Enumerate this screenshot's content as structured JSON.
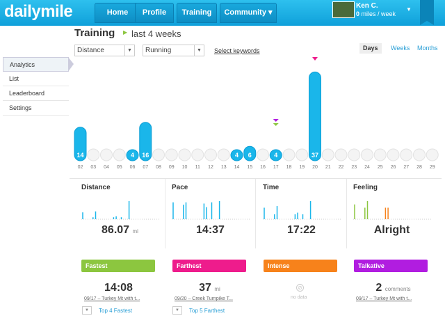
{
  "app": {
    "logo": "dailymile"
  },
  "nav": {
    "home": "Home",
    "profile": "Profile",
    "training": "Training",
    "community": "Community ▾"
  },
  "user": {
    "name": "Ken C.",
    "miles": "0",
    "miles_suffix": " miles / week"
  },
  "header": {
    "title": "Training",
    "range": "last 4 weeks"
  },
  "filters": {
    "metric": "Distance",
    "activity": "Running",
    "keywords": "Select keywords"
  },
  "periods": {
    "days": "Days",
    "weeks": "Weeks",
    "months": "Months"
  },
  "sidebar": {
    "items": [
      {
        "label": "Analytics"
      },
      {
        "label": "List"
      },
      {
        "label": "Leaderboard"
      },
      {
        "label": "Settings"
      }
    ]
  },
  "chart_data": {
    "type": "bar",
    "categories": [
      "02",
      "03",
      "04",
      "05",
      "06",
      "07",
      "08",
      "09",
      "10",
      "11",
      "12",
      "13",
      "14",
      "15",
      "16",
      "17",
      "18",
      "19",
      "20",
      "21",
      "22",
      "23",
      "24",
      "25",
      "26",
      "27",
      "28",
      "29"
    ],
    "values": [
      14,
      0,
      0,
      0,
      4,
      16,
      0,
      0,
      0,
      0,
      0,
      0,
      4,
      6,
      0,
      4,
      0,
      0,
      37,
      0,
      0,
      0,
      0,
      0,
      0,
      0,
      0,
      0
    ],
    "title": "Distance",
    "ylim": [
      0,
      40
    ]
  },
  "stats": {
    "distance": {
      "label": "Distance",
      "value": "86.07",
      "unit": "mi"
    },
    "pace": {
      "label": "Pace",
      "value": "14:37"
    },
    "time": {
      "label": "Time",
      "value": "17:22"
    },
    "feeling": {
      "label": "Feeling",
      "value": "Alright"
    }
  },
  "sparks": {
    "distance": [
      14,
      0,
      0,
      0,
      4,
      16,
      0,
      0,
      0,
      0,
      0,
      0,
      4,
      6,
      0,
      4,
      0,
      0,
      37
    ],
    "pace": [
      14,
      0,
      0,
      0,
      12,
      14,
      0,
      0,
      0,
      0,
      0,
      0,
      13,
      10,
      0,
      14,
      0,
      0,
      15
    ],
    "time": [
      14,
      0,
      0,
      0,
      6,
      16,
      0,
      0,
      0,
      0,
      0,
      0,
      6,
      8,
      0,
      6,
      0,
      0,
      22
    ],
    "feeling": [
      18,
      0,
      0,
      0,
      14,
      22,
      0,
      0,
      0,
      0,
      0,
      0,
      14,
      14,
      0,
      0,
      0,
      0,
      0
    ]
  },
  "badges": {
    "fastest": {
      "title": "Fastest",
      "value": "14:08",
      "sub": "09/17 – Turkey Mt with t...",
      "link": "Top 4 Fastest",
      "color": "#8cc63f"
    },
    "farthest": {
      "title": "Farthest",
      "value": "37",
      "unit": "mi",
      "sub": "09/20 – Creek Turnpike T...",
      "link": "Top 5 Farthest",
      "color": "#ee1c8c"
    },
    "intense": {
      "title": "Intense",
      "nodata": "no data",
      "color": "#f7821b"
    },
    "talkative": {
      "title": "Talkative",
      "value": "2",
      "unit": "comments",
      "sub": "09/17 – Turkey Mt with t...",
      "color": "#b11de0"
    }
  }
}
